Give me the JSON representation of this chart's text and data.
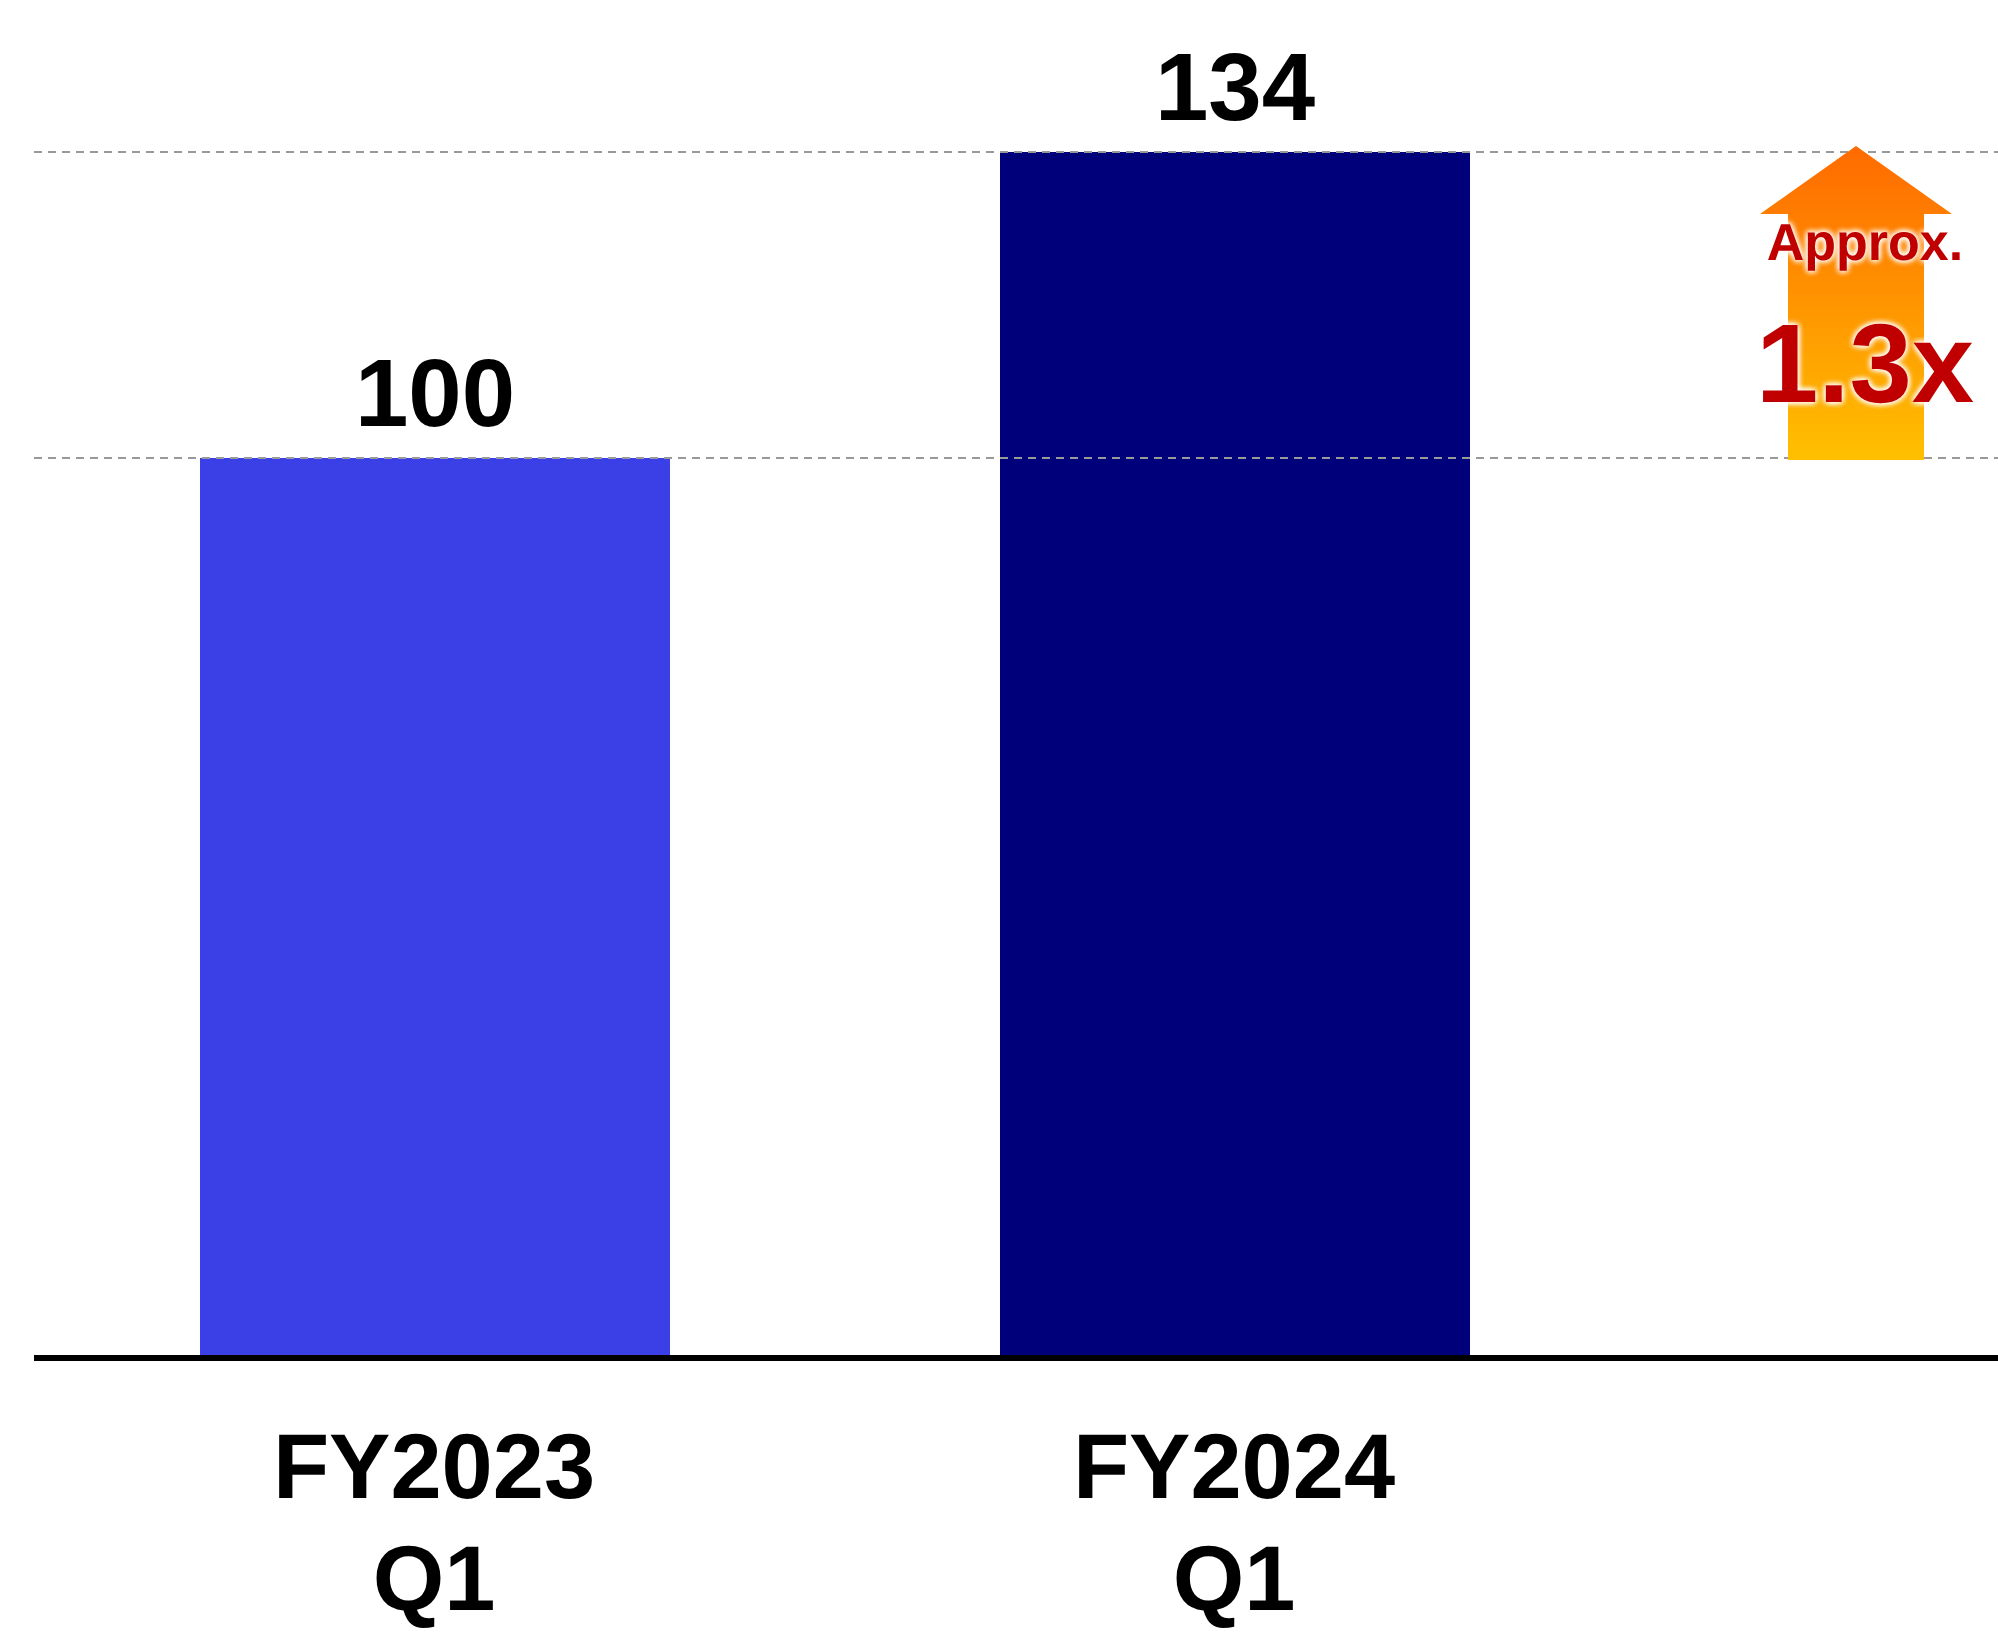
{
  "chart_data": {
    "type": "bar",
    "categories": [
      "FY2023 Q1",
      "FY2024 Q1"
    ],
    "values": [
      100,
      134
    ],
    "colors": [
      "#3b3fe6",
      "#00007a"
    ],
    "data_labels": true,
    "ref_lines": [
      {
        "axis": "y",
        "value": 100,
        "color": "#999999",
        "line_style": "dashed"
      },
      {
        "axis": "y",
        "value": 134,
        "color": "#999999",
        "line_style": "dashed"
      }
    ],
    "annotations": [
      "Approx.",
      "1.3x"
    ]
  }
}
